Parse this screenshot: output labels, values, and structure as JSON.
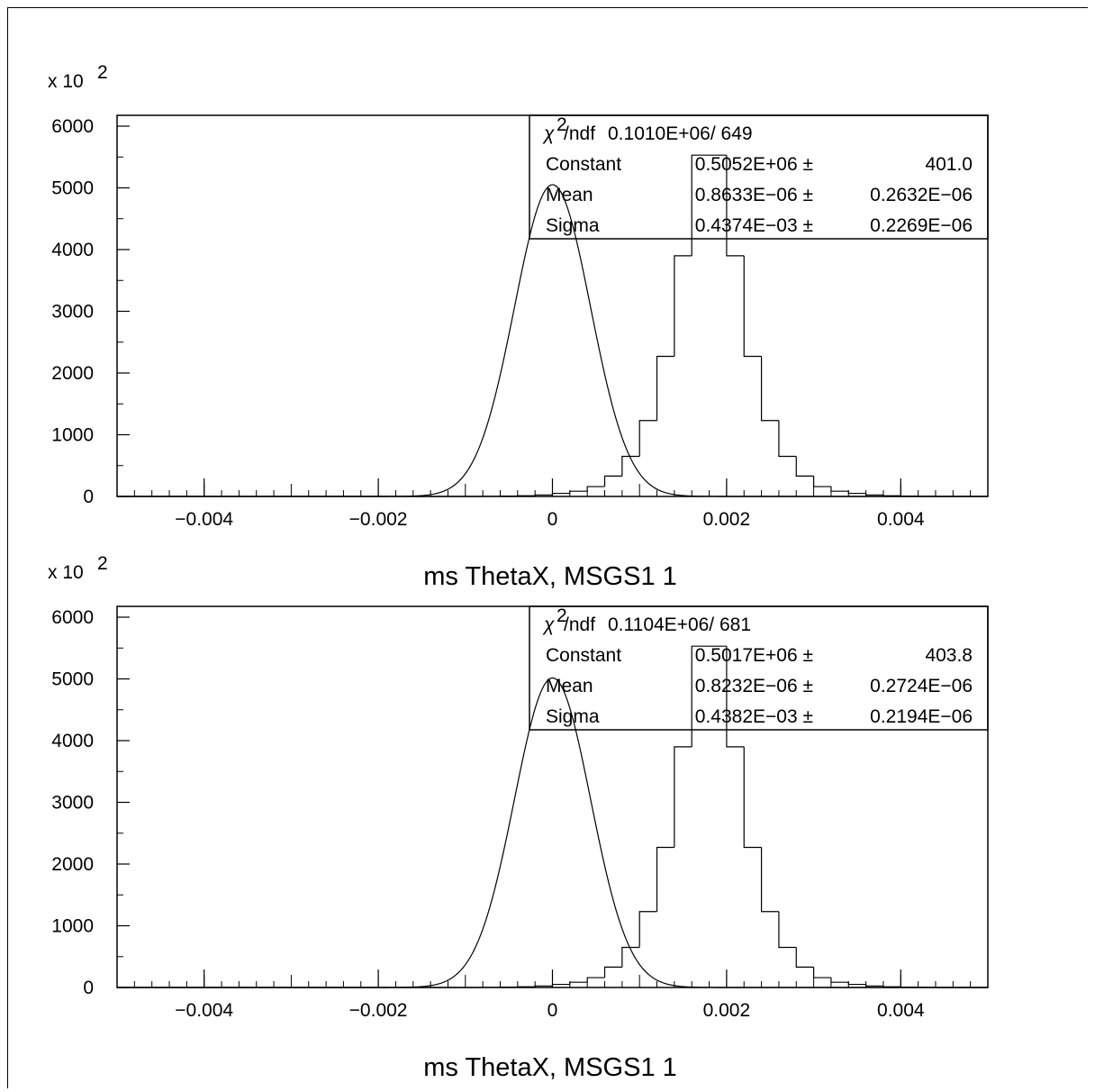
{
  "chart_data": [
    {
      "type": "bar",
      "subtype": "histogram-with-gaussian-fit",
      "title": "",
      "xlabel": "ms ThetaX, MSGS1 1",
      "ylabel": "",
      "y_multiplier": "x 10",
      "y_multiplier_exp": "2",
      "xlim": [
        -0.005,
        0.005
      ],
      "ylim": [
        0,
        6200
      ],
      "x_ticks": [
        "-0.004",
        "-0.002",
        "0",
        "0.002",
        "0.004"
      ],
      "y_ticks": [
        "0",
        "1000",
        "2000",
        "3000",
        "4000",
        "5000",
        "6000"
      ],
      "bins": {
        "start": -0.005,
        "width": 0.0002,
        "values": [
          0,
          0,
          0,
          0,
          0,
          0,
          0,
          0,
          0,
          0,
          0,
          0,
          0,
          0,
          0,
          0,
          0,
          0,
          0,
          0,
          0,
          3,
          6,
          12,
          25,
          50,
          85,
          160,
          330,
          650,
          1230,
          2270,
          3900,
          5530,
          5530,
          3900,
          2270,
          1230,
          650,
          330,
          160,
          85,
          50,
          25,
          12,
          6,
          3,
          0,
          0,
          0
        ]
      },
      "fit": {
        "type": "gaussian",
        "constant": 5052,
        "mean": 8.633e-07,
        "sigma": 0.0004374
      },
      "stats": {
        "chi2_label": "χ",
        "chi2_sup": "2",
        "chi2_rest": "/ndf",
        "chi2_value": "0.1010E+06/  649",
        "rows": [
          {
            "name": "Constant",
            "value": "0.5052E+06 ±",
            "error": "401.0"
          },
          {
            "name": "Mean",
            "value": "0.8633E−06 ±",
            "error": "0.2632E−06"
          },
          {
            "name": "Sigma",
            "value": "0.4374E−03 ±",
            "error": "0.2269E−06"
          }
        ]
      }
    },
    {
      "type": "bar",
      "subtype": "histogram-with-gaussian-fit",
      "title": "",
      "xlabel": "ms ThetaX, MSGS1 1",
      "ylabel": "",
      "y_multiplier": "x 10",
      "y_multiplier_exp": "2",
      "xlim": [
        -0.005,
        0.005
      ],
      "ylim": [
        0,
        6200
      ],
      "x_ticks": [
        "-0.004",
        "-0.002",
        "0",
        "0.002",
        "0.004"
      ],
      "y_ticks": [
        "0",
        "1000",
        "2000",
        "3000",
        "4000",
        "5000",
        "6000"
      ],
      "bins": {
        "start": -0.005,
        "width": 0.0002,
        "values": [
          0,
          0,
          0,
          0,
          0,
          0,
          0,
          0,
          0,
          0,
          0,
          0,
          0,
          0,
          0,
          0,
          0,
          0,
          0,
          0,
          0,
          3,
          6,
          12,
          25,
          50,
          85,
          160,
          330,
          650,
          1230,
          2270,
          3900,
          5530,
          5530,
          3900,
          2270,
          1230,
          650,
          330,
          160,
          85,
          50,
          25,
          12,
          6,
          3,
          0,
          0,
          0
        ]
      },
      "fit": {
        "type": "gaussian",
        "constant": 5017,
        "mean": 8.232e-07,
        "sigma": 0.0004382
      },
      "stats": {
        "chi2_label": "χ",
        "chi2_sup": "2",
        "chi2_rest": "/ndf",
        "chi2_value": "0.1104E+06/  681",
        "rows": [
          {
            "name": "Constant",
            "value": "0.5017E+06 ±",
            "error": "403.8"
          },
          {
            "name": "Mean",
            "value": "0.8232E−06 ±",
            "error": "0.2724E−06"
          },
          {
            "name": "Sigma",
            "value": "0.4382E−03 ±",
            "error": "0.2194E−06"
          }
        ]
      }
    }
  ]
}
